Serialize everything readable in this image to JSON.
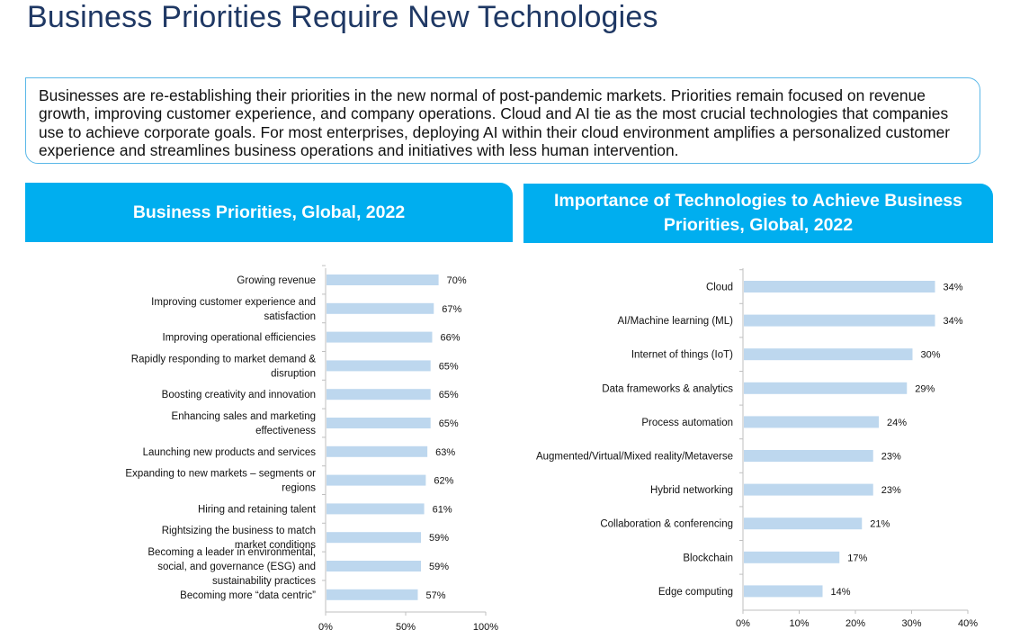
{
  "page": {
    "title": "Business Priorities Require New Technologies"
  },
  "summary": {
    "text": "Businesses are re-establishing their priorities in the new normal of post-pandemic markets. Priorities remain focused on revenue growth, improving customer experience, and company operations. Cloud and AI tie as the most crucial technologies that companies use to achieve corporate goals. For most enterprises, deploying AI within their cloud environment amplifies a personalized customer experience and streamlines business operations and initiatives with less human intervention."
  },
  "colors": {
    "header": "#00AEEF",
    "bar": "#BDD7EE",
    "title": "#1F3864",
    "border": "#5BB8E8"
  },
  "chart_data": [
    {
      "type": "bar",
      "orientation": "horizontal",
      "title": "Business Priorities, Global, 2022",
      "categories": [
        "Growing revenue",
        "Improving customer experience and satisfaction",
        "Improving operational efficiencies",
        "Rapidly responding to market demand & disruption",
        "Boosting creativity and innovation",
        "Enhancing sales and marketing effectiveness",
        "Launching new products and services",
        "Expanding to new markets – segments or regions",
        "Hiring and retaining talent",
        "Rightsizing the business to match market conditions",
        "Becoming a leader in environmental, social, and governance (ESG) and sustainability practices",
        "Becoming more “data centric”"
      ],
      "values": [
        70,
        67,
        66,
        65,
        65,
        65,
        63,
        62,
        61,
        59,
        59,
        57
      ],
      "value_labels": [
        "70%",
        "67%",
        "66%",
        "65%",
        "65%",
        "65%",
        "63%",
        "62%",
        "61%",
        "59%",
        "59%",
        "57%"
      ],
      "xlim": [
        0,
        100
      ],
      "xticks": [
        "0%",
        "50%",
        "100%"
      ],
      "grid": false
    },
    {
      "type": "bar",
      "orientation": "horizontal",
      "title": "Importance of Technologies to Achieve Business Priorities, Global, 2022",
      "categories": [
        "Cloud",
        "AI/Machine learning (ML)",
        "Internet of things (IoT)",
        "Data frameworks & analytics",
        "Process automation",
        "Augmented/Virtual/Mixed reality/Metaverse",
        "Hybrid networking",
        "Collaboration & conferencing",
        "Blockchain",
        "Edge computing"
      ],
      "values": [
        34,
        34,
        30,
        29,
        24,
        23,
        23,
        21,
        17,
        14
      ],
      "value_labels": [
        "34%",
        "34%",
        "30%",
        "29%",
        "24%",
        "23%",
        "23%",
        "21%",
        "17%",
        "14%"
      ],
      "xlim": [
        0,
        40
      ],
      "xticks": [
        "0%",
        "10%",
        "20%",
        "30%",
        "40%"
      ],
      "grid": false
    }
  ]
}
